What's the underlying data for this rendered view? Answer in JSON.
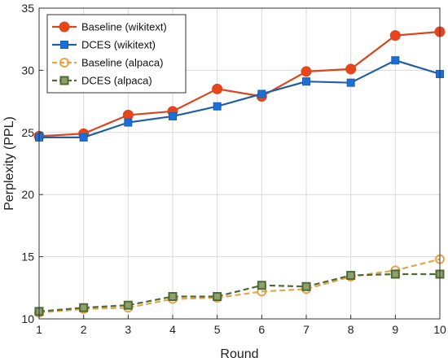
{
  "chart_data": {
    "type": "line",
    "title": "",
    "xlabel": "Round",
    "ylabel": "Perplexity (PPL)",
    "x": [
      1,
      2,
      3,
      4,
      5,
      6,
      7,
      8,
      9,
      10
    ],
    "xlim": [
      1,
      10
    ],
    "ylim": [
      10,
      35
    ],
    "xticks": [
      1,
      2,
      3,
      4,
      5,
      6,
      7,
      8,
      9,
      10
    ],
    "yticks": [
      10,
      15,
      20,
      25,
      30,
      35
    ],
    "grid": true,
    "legend_position": "top-left",
    "series": [
      {
        "name": "Baseline (wikitext)",
        "values": [
          24.7,
          24.9,
          26.4,
          26.7,
          28.5,
          27.9,
          29.9,
          30.1,
          32.8,
          33.1
        ],
        "color": "#d9461e",
        "marker": "circle",
        "marker_fill": "#e8451d",
        "dash": "solid"
      },
      {
        "name": "DCES (wikitext)",
        "values": [
          24.6,
          24.6,
          25.8,
          26.3,
          27.1,
          28.1,
          29.1,
          29.0,
          30.8,
          29.7
        ],
        "color": "#1f5fa8",
        "marker": "square",
        "marker_fill": "#1a6fd9",
        "dash": "solid"
      },
      {
        "name": "Baseline (alpaca)",
        "values": [
          10.5,
          10.8,
          10.9,
          11.6,
          11.7,
          12.2,
          12.4,
          13.4,
          13.9,
          14.8
        ],
        "color": "#e3a54a",
        "marker": "circle-open",
        "marker_fill": "none",
        "dash": "dashed"
      },
      {
        "name": "DCES (alpaca)",
        "values": [
          10.6,
          10.9,
          11.1,
          11.8,
          11.8,
          12.7,
          12.6,
          13.5,
          13.6,
          13.6
        ],
        "color": "#4f6a36",
        "marker": "square-open",
        "marker_fill": "#8fa06a",
        "dash": "dashed"
      }
    ]
  }
}
